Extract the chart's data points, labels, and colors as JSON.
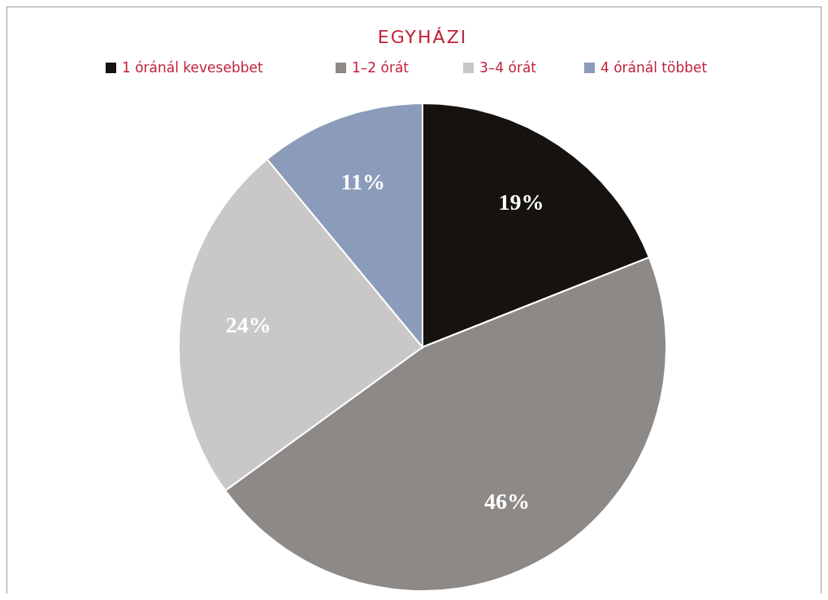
{
  "chart_data": {
    "type": "pie",
    "title": "EGYHÁZI",
    "categories": [
      "1 óránál kevesebbet",
      "1–2 órát",
      "3–4 órát",
      "4 óránál többet"
    ],
    "values": [
      19,
      46,
      24,
      11
    ],
    "colors": [
      "#15120f",
      "#8c8987",
      "#c9c7c7",
      "#8b9cba"
    ],
    "value_labels": [
      "19%",
      "46%",
      "24%",
      "11%"
    ],
    "legend": "top"
  }
}
